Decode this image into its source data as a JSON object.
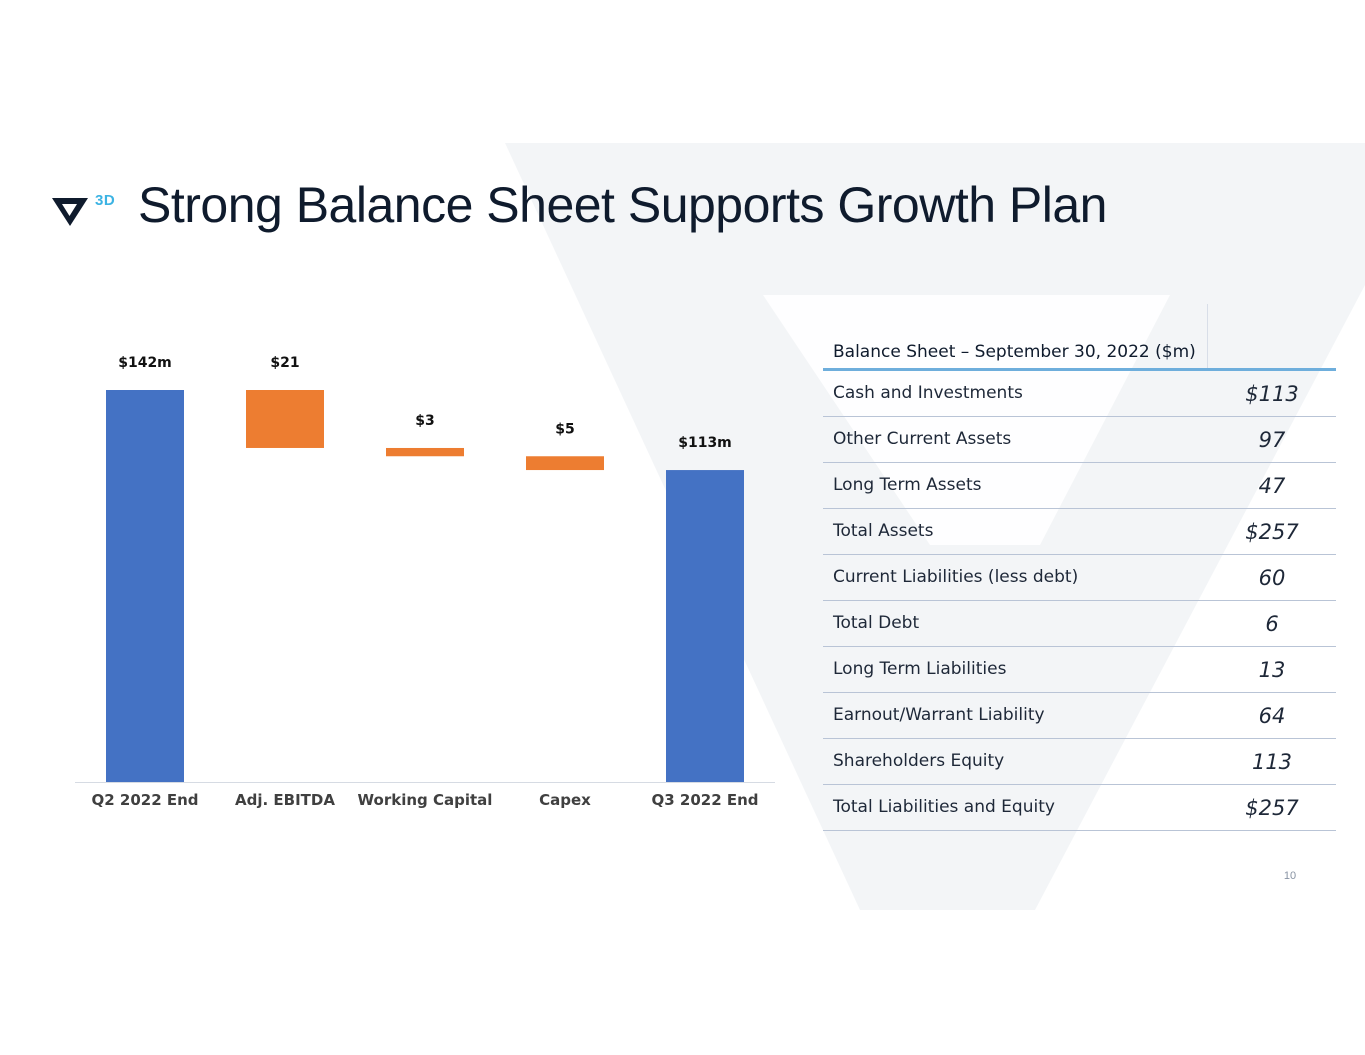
{
  "slide": {
    "title": "Strong Balance Sheet Supports Growth Plan",
    "logo_badge": "3D",
    "page_number": "10"
  },
  "colors": {
    "increase_total": "#4472c4",
    "decrease": "#ed7d31",
    "title": "#0f1b2d",
    "table_rule": "#6eaedc"
  },
  "chart_data": {
    "type": "bar",
    "subtype": "waterfall",
    "categories": [
      "Q2 2022 End",
      "Adj. EBITDA",
      "Working Capital",
      "Capex",
      "Q3 2022 End"
    ],
    "steps": [
      {
        "category": "Q2 2022 End",
        "kind": "total",
        "value": 142,
        "label": "$142m"
      },
      {
        "category": "Adj. EBITDA",
        "kind": "decrease",
        "value": -21,
        "label": "$21"
      },
      {
        "category": "Working Capital",
        "kind": "decrease",
        "value": -3,
        "label": "$3"
      },
      {
        "category": "Capex",
        "kind": "decrease",
        "value": -5,
        "label": "$5"
      },
      {
        "category": "Q3 2022 End",
        "kind": "total",
        "value": 113,
        "label": "$113m"
      }
    ],
    "title": "",
    "xlabel": "",
    "ylabel": "",
    "ylim": [
      0,
      142
    ],
    "grid": false,
    "legend": "none"
  },
  "balance_sheet": {
    "header": "Balance Sheet – September 30, 2022 ($m)",
    "rows": [
      {
        "label": "Cash and Investments",
        "value": "$113"
      },
      {
        "label": "Other Current Assets",
        "value": "97"
      },
      {
        "label": "Long Term Assets",
        "value": "47"
      },
      {
        "label": "Total Assets",
        "value": "$257"
      },
      {
        "label": "Current Liabilities (less debt)",
        "value": "60"
      },
      {
        "label": "Total Debt",
        "value": "6"
      },
      {
        "label": "Long Term Liabilities",
        "value": "13"
      },
      {
        "label": "Earnout/Warrant Liability",
        "value": "64"
      },
      {
        "label": "Shareholders Equity",
        "value": "113"
      },
      {
        "label": "Total Liabilities and Equity",
        "value": "$257"
      }
    ]
  }
}
